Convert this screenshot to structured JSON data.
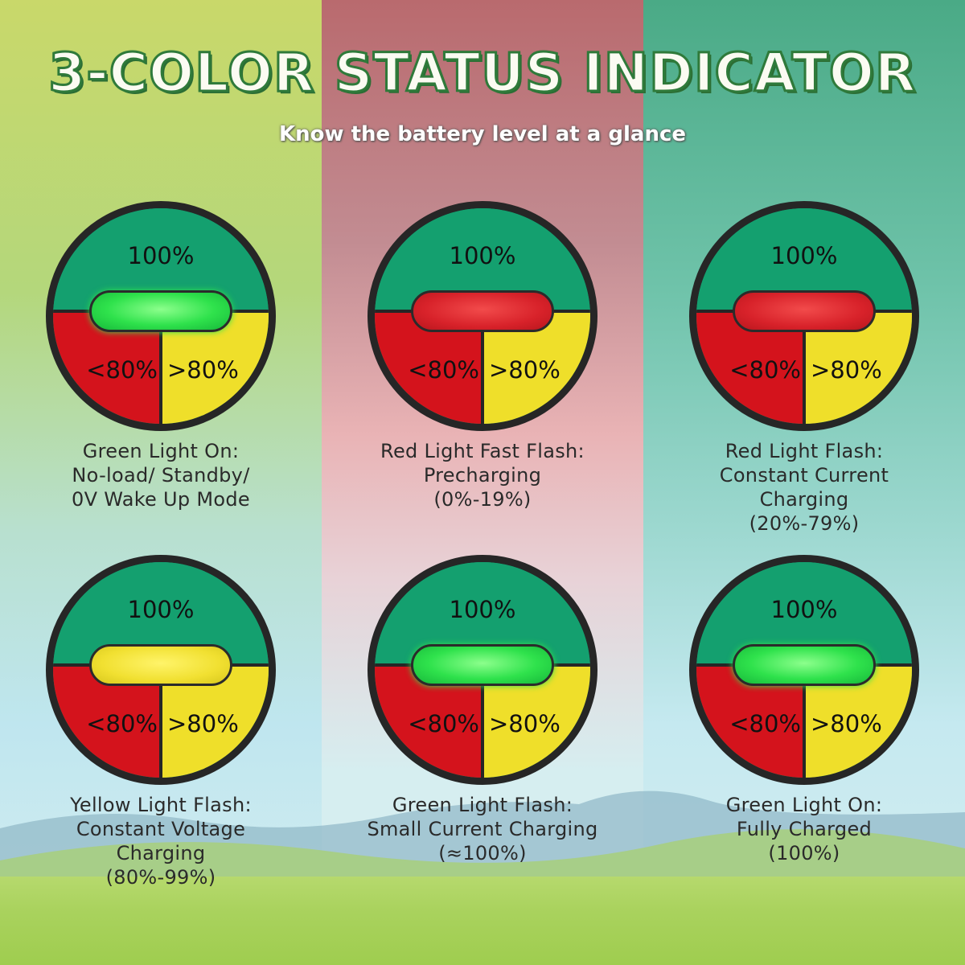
{
  "header": {
    "title": "3-COLOR STATUS INDICATOR",
    "subtitle": "Know the battery level at a glance"
  },
  "colors": {
    "top_green": "#14a06f",
    "left_red": "#d4131c",
    "right_yellow": "#efdf2a",
    "led_green": "#2fe24c",
    "led_red": "#d8222a",
    "led_yellow": "#f1e031"
  },
  "indicators": [
    {
      "top": "100%",
      "left": "<80%",
      "right": ">80%",
      "led": "green",
      "caption": [
        "Green Light On:",
        "No-load/ Standby/",
        "0V Wake Up Mode"
      ]
    },
    {
      "top": "100%",
      "left": "<80%",
      "right": ">80%",
      "led": "red",
      "caption": [
        "Red Light Fast Flash:",
        "Precharging",
        "(0%-19%)"
      ]
    },
    {
      "top": "100%",
      "left": "<80%",
      "right": ">80%",
      "led": "red",
      "caption": [
        "Red Light Flash:",
        "Constant Current",
        "Charging",
        "(20%-79%)"
      ]
    },
    {
      "top": "100%",
      "left": "<80%",
      "right": ">80%",
      "led": "yellow",
      "caption": [
        "Yellow Light Flash:",
        "Constant Voltage",
        "Charging",
        "(80%-99%)"
      ]
    },
    {
      "top": "100%",
      "left": "<80%",
      "right": ">80%",
      "led": "green",
      "caption": [
        "Green Light Flash:",
        "Small Current Charging",
        "(≈100%)"
      ]
    },
    {
      "top": "100%",
      "left": "<80%",
      "right": ">80%",
      "led": "green",
      "caption": [
        "Green Light On:",
        "Fully Charged",
        "(100%)"
      ]
    }
  ]
}
